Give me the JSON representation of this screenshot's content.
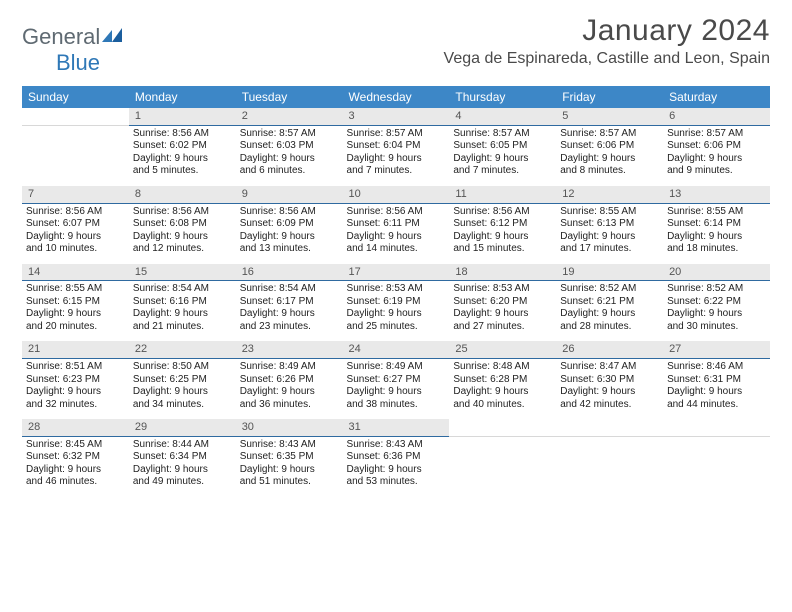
{
  "brand": {
    "general": "General",
    "blue": "Blue"
  },
  "title": "January 2024",
  "location": "Vega de Espinareda, Castille and Leon, Spain",
  "colors": {
    "header_bg": "#3d87c7",
    "daynum_bg": "#e9e9e9",
    "daynum_border": "#2f6aa0"
  },
  "dow": [
    "Sunday",
    "Monday",
    "Tuesday",
    "Wednesday",
    "Thursday",
    "Friday",
    "Saturday"
  ],
  "weeks": [
    {
      "nums": [
        "",
        "1",
        "2",
        "3",
        "4",
        "5",
        "6"
      ],
      "cells": [
        null,
        {
          "sunrise": "Sunrise: 8:56 AM",
          "sunset": "Sunset: 6:02 PM",
          "d1": "Daylight: 9 hours",
          "d2": "and 5 minutes."
        },
        {
          "sunrise": "Sunrise: 8:57 AM",
          "sunset": "Sunset: 6:03 PM",
          "d1": "Daylight: 9 hours",
          "d2": "and 6 minutes."
        },
        {
          "sunrise": "Sunrise: 8:57 AM",
          "sunset": "Sunset: 6:04 PM",
          "d1": "Daylight: 9 hours",
          "d2": "and 7 minutes."
        },
        {
          "sunrise": "Sunrise: 8:57 AM",
          "sunset": "Sunset: 6:05 PM",
          "d1": "Daylight: 9 hours",
          "d2": "and 7 minutes."
        },
        {
          "sunrise": "Sunrise: 8:57 AM",
          "sunset": "Sunset: 6:06 PM",
          "d1": "Daylight: 9 hours",
          "d2": "and 8 minutes."
        },
        {
          "sunrise": "Sunrise: 8:57 AM",
          "sunset": "Sunset: 6:06 PM",
          "d1": "Daylight: 9 hours",
          "d2": "and 9 minutes."
        }
      ]
    },
    {
      "nums": [
        "7",
        "8",
        "9",
        "10",
        "11",
        "12",
        "13"
      ],
      "cells": [
        {
          "sunrise": "Sunrise: 8:56 AM",
          "sunset": "Sunset: 6:07 PM",
          "d1": "Daylight: 9 hours",
          "d2": "and 10 minutes."
        },
        {
          "sunrise": "Sunrise: 8:56 AM",
          "sunset": "Sunset: 6:08 PM",
          "d1": "Daylight: 9 hours",
          "d2": "and 12 minutes."
        },
        {
          "sunrise": "Sunrise: 8:56 AM",
          "sunset": "Sunset: 6:09 PM",
          "d1": "Daylight: 9 hours",
          "d2": "and 13 minutes."
        },
        {
          "sunrise": "Sunrise: 8:56 AM",
          "sunset": "Sunset: 6:11 PM",
          "d1": "Daylight: 9 hours",
          "d2": "and 14 minutes."
        },
        {
          "sunrise": "Sunrise: 8:56 AM",
          "sunset": "Sunset: 6:12 PM",
          "d1": "Daylight: 9 hours",
          "d2": "and 15 minutes."
        },
        {
          "sunrise": "Sunrise: 8:55 AM",
          "sunset": "Sunset: 6:13 PM",
          "d1": "Daylight: 9 hours",
          "d2": "and 17 minutes."
        },
        {
          "sunrise": "Sunrise: 8:55 AM",
          "sunset": "Sunset: 6:14 PM",
          "d1": "Daylight: 9 hours",
          "d2": "and 18 minutes."
        }
      ]
    },
    {
      "nums": [
        "14",
        "15",
        "16",
        "17",
        "18",
        "19",
        "20"
      ],
      "cells": [
        {
          "sunrise": "Sunrise: 8:55 AM",
          "sunset": "Sunset: 6:15 PM",
          "d1": "Daylight: 9 hours",
          "d2": "and 20 minutes."
        },
        {
          "sunrise": "Sunrise: 8:54 AM",
          "sunset": "Sunset: 6:16 PM",
          "d1": "Daylight: 9 hours",
          "d2": "and 21 minutes."
        },
        {
          "sunrise": "Sunrise: 8:54 AM",
          "sunset": "Sunset: 6:17 PM",
          "d1": "Daylight: 9 hours",
          "d2": "and 23 minutes."
        },
        {
          "sunrise": "Sunrise: 8:53 AM",
          "sunset": "Sunset: 6:19 PM",
          "d1": "Daylight: 9 hours",
          "d2": "and 25 minutes."
        },
        {
          "sunrise": "Sunrise: 8:53 AM",
          "sunset": "Sunset: 6:20 PM",
          "d1": "Daylight: 9 hours",
          "d2": "and 27 minutes."
        },
        {
          "sunrise": "Sunrise: 8:52 AM",
          "sunset": "Sunset: 6:21 PM",
          "d1": "Daylight: 9 hours",
          "d2": "and 28 minutes."
        },
        {
          "sunrise": "Sunrise: 8:52 AM",
          "sunset": "Sunset: 6:22 PM",
          "d1": "Daylight: 9 hours",
          "d2": "and 30 minutes."
        }
      ]
    },
    {
      "nums": [
        "21",
        "22",
        "23",
        "24",
        "25",
        "26",
        "27"
      ],
      "cells": [
        {
          "sunrise": "Sunrise: 8:51 AM",
          "sunset": "Sunset: 6:23 PM",
          "d1": "Daylight: 9 hours",
          "d2": "and 32 minutes."
        },
        {
          "sunrise": "Sunrise: 8:50 AM",
          "sunset": "Sunset: 6:25 PM",
          "d1": "Daylight: 9 hours",
          "d2": "and 34 minutes."
        },
        {
          "sunrise": "Sunrise: 8:49 AM",
          "sunset": "Sunset: 6:26 PM",
          "d1": "Daylight: 9 hours",
          "d2": "and 36 minutes."
        },
        {
          "sunrise": "Sunrise: 8:49 AM",
          "sunset": "Sunset: 6:27 PM",
          "d1": "Daylight: 9 hours",
          "d2": "and 38 minutes."
        },
        {
          "sunrise": "Sunrise: 8:48 AM",
          "sunset": "Sunset: 6:28 PM",
          "d1": "Daylight: 9 hours",
          "d2": "and 40 minutes."
        },
        {
          "sunrise": "Sunrise: 8:47 AM",
          "sunset": "Sunset: 6:30 PM",
          "d1": "Daylight: 9 hours",
          "d2": "and 42 minutes."
        },
        {
          "sunrise": "Sunrise: 8:46 AM",
          "sunset": "Sunset: 6:31 PM",
          "d1": "Daylight: 9 hours",
          "d2": "and 44 minutes."
        }
      ]
    },
    {
      "nums": [
        "28",
        "29",
        "30",
        "31",
        "",
        "",
        ""
      ],
      "cells": [
        {
          "sunrise": "Sunrise: 8:45 AM",
          "sunset": "Sunset: 6:32 PM",
          "d1": "Daylight: 9 hours",
          "d2": "and 46 minutes."
        },
        {
          "sunrise": "Sunrise: 8:44 AM",
          "sunset": "Sunset: 6:34 PM",
          "d1": "Daylight: 9 hours",
          "d2": "and 49 minutes."
        },
        {
          "sunrise": "Sunrise: 8:43 AM",
          "sunset": "Sunset: 6:35 PM",
          "d1": "Daylight: 9 hours",
          "d2": "and 51 minutes."
        },
        {
          "sunrise": "Sunrise: 8:43 AM",
          "sunset": "Sunset: 6:36 PM",
          "d1": "Daylight: 9 hours",
          "d2": "and 53 minutes."
        },
        null,
        null,
        null
      ]
    }
  ]
}
